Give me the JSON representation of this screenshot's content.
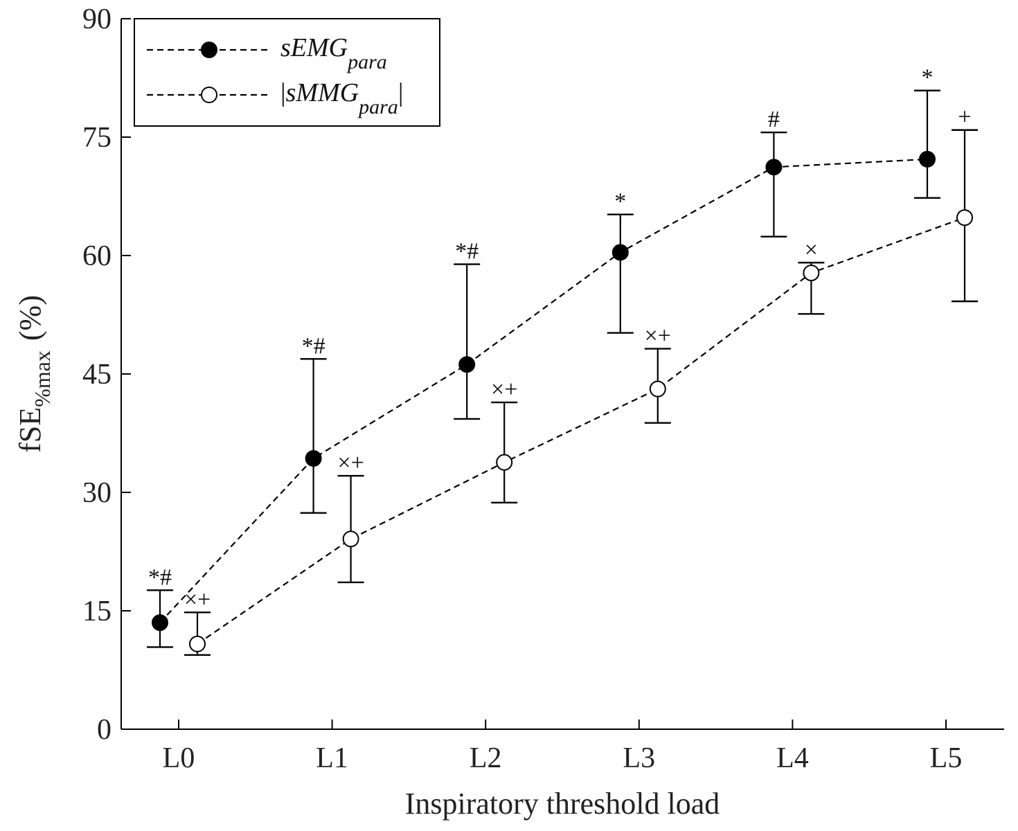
{
  "chart_data": {
    "type": "line",
    "categories": [
      "L0",
      "L1",
      "L2",
      "L3",
      "L4",
      "L5"
    ],
    "xlabel": "Inspiratory threshold load",
    "ylabel": {
      "main": "fSE",
      "subscript": "%max",
      "unit": "(%)"
    },
    "ylim": [
      0,
      90
    ],
    "yticks": [
      0,
      15,
      30,
      45,
      60,
      75,
      90
    ],
    "grid": false,
    "legend_position": "top-left",
    "series": [
      {
        "name": "sEMG",
        "subscript": "para",
        "legend_prefix": "",
        "legend_suffix": "",
        "marker": "filled-circle",
        "offset": "left",
        "values": [
          13.5,
          34.3,
          46.2,
          60.4,
          71.2,
          72.2
        ],
        "err_lower": [
          10.4,
          27.4,
          39.3,
          50.2,
          62.4,
          67.3
        ],
        "err_upper": [
          17.6,
          46.9,
          58.9,
          65.2,
          75.6,
          80.9
        ],
        "annotations": [
          "*#",
          "*#",
          "*#",
          "*",
          "#",
          "*"
        ]
      },
      {
        "name": "sMMG",
        "subscript": "para",
        "legend_prefix": "|",
        "legend_suffix": "|",
        "marker": "open-circle",
        "offset": "right",
        "values": [
          10.8,
          24.1,
          33.8,
          43.1,
          57.8,
          64.8
        ],
        "err_lower": [
          9.4,
          18.6,
          28.7,
          38.8,
          52.6,
          54.2
        ],
        "err_upper": [
          14.8,
          32.1,
          41.4,
          48.2,
          59.1,
          75.9
        ],
        "annotations": [
          "×+",
          "×+",
          "×+",
          "×+",
          "×",
          "+"
        ]
      }
    ]
  }
}
